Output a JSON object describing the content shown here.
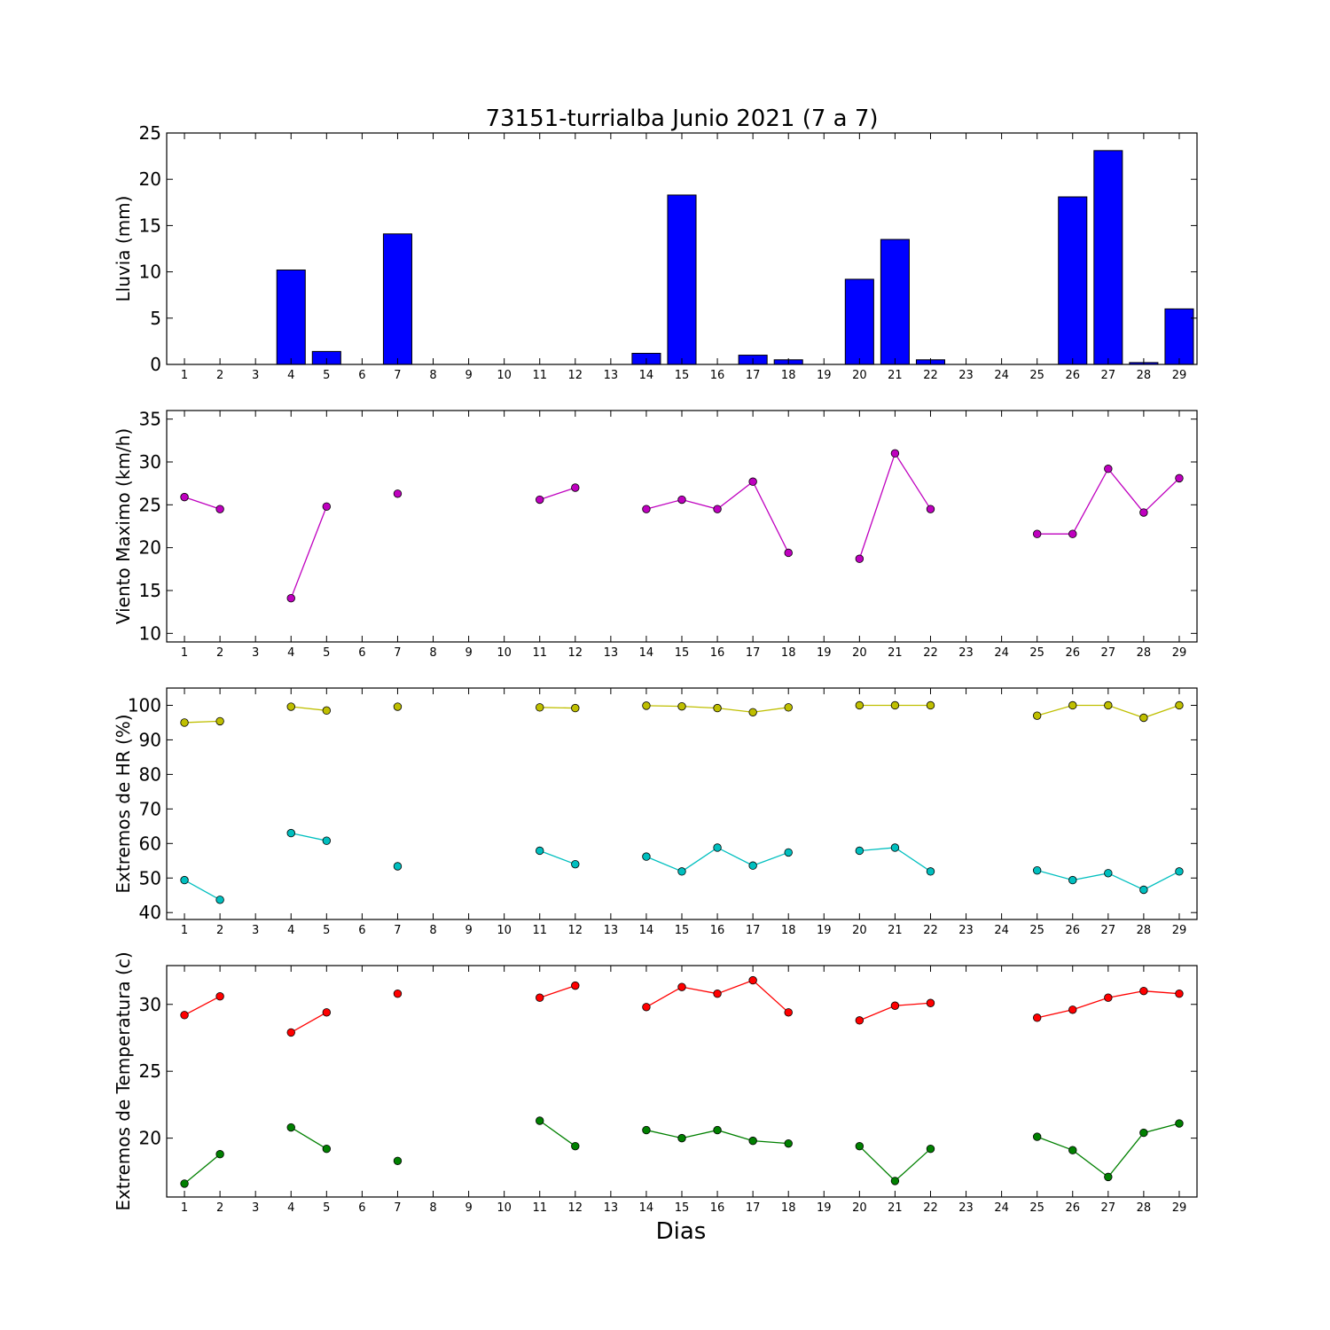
{
  "figure": {
    "title": "73151-turrialba Junio 2021  (7 a 7)",
    "xlabel": "Dias"
  },
  "chart_data": [
    {
      "type": "bar",
      "ylabel": "Lluvia (mm)",
      "x": [
        1,
        2,
        3,
        4,
        5,
        6,
        7,
        8,
        9,
        10,
        11,
        12,
        13,
        14,
        15,
        16,
        17,
        18,
        19,
        20,
        21,
        22,
        23,
        24,
        25,
        26,
        27,
        28,
        29
      ],
      "xticks": [
        1,
        2,
        3,
        4,
        5,
        6,
        7,
        8,
        9,
        10,
        11,
        12,
        13,
        14,
        15,
        16,
        17,
        18,
        19,
        20,
        21,
        22,
        23,
        24,
        25,
        26,
        27,
        28,
        29
      ],
      "xlim": [
        0.5,
        29.5
      ],
      "ylim": [
        0,
        25
      ],
      "yticks": [
        0,
        5,
        10,
        15,
        20,
        25
      ],
      "series": [
        {
          "color": "#0000ff",
          "values": [
            0,
            0,
            0,
            10.2,
            1.4,
            0,
            14.1,
            0,
            0,
            0,
            0,
            0,
            0,
            1.2,
            18.3,
            0,
            1.0,
            0.5,
            0,
            9.2,
            13.5,
            0.5,
            0,
            0,
            0,
            18.1,
            23.1,
            0.2,
            6.0
          ]
        }
      ]
    },
    {
      "type": "line",
      "ylabel": "Viento Maximo (km/h)",
      "x": [
        1,
        2,
        3,
        4,
        5,
        6,
        7,
        8,
        9,
        10,
        11,
        12,
        13,
        14,
        15,
        16,
        17,
        18,
        19,
        20,
        21,
        22,
        23,
        24,
        25,
        26,
        27,
        28,
        29
      ],
      "xticks": [
        1,
        2,
        3,
        4,
        5,
        6,
        7,
        8,
        9,
        10,
        11,
        12,
        13,
        14,
        15,
        16,
        17,
        18,
        19,
        20,
        21,
        22,
        23,
        24,
        25,
        26,
        27,
        28,
        29
      ],
      "xlim": [
        0.5,
        29.5
      ],
      "ylim": [
        9,
        36
      ],
      "yticks": [
        10,
        15,
        20,
        25,
        30,
        35
      ],
      "series": [
        {
          "color": "#bf00bf",
          "values": [
            25.9,
            24.5,
            null,
            14.1,
            24.8,
            null,
            26.3,
            null,
            null,
            null,
            25.6,
            27.0,
            null,
            24.5,
            25.6,
            24.5,
            27.7,
            19.4,
            null,
            18.7,
            31.0,
            24.5,
            null,
            null,
            21.6,
            21.6,
            29.2,
            24.1,
            28.1
          ]
        }
      ]
    },
    {
      "type": "line",
      "ylabel": "Extremos de HR (%)",
      "x": [
        1,
        2,
        3,
        4,
        5,
        6,
        7,
        8,
        9,
        10,
        11,
        12,
        13,
        14,
        15,
        16,
        17,
        18,
        19,
        20,
        21,
        22,
        23,
        24,
        25,
        26,
        27,
        28,
        29
      ],
      "xticks": [
        1,
        2,
        3,
        4,
        5,
        6,
        7,
        8,
        9,
        10,
        11,
        12,
        13,
        14,
        15,
        16,
        17,
        18,
        19,
        20,
        21,
        22,
        23,
        24,
        25,
        26,
        27,
        28,
        29
      ],
      "xlim": [
        0.5,
        29.5
      ],
      "ylim": [
        38,
        105
      ],
      "yticks": [
        40,
        50,
        60,
        70,
        80,
        90,
        100
      ],
      "series": [
        {
          "color": "#bfbf00",
          "values": [
            95.0,
            95.4,
            null,
            99.6,
            98.5,
            null,
            99.6,
            null,
            null,
            null,
            99.4,
            99.2,
            null,
            99.9,
            99.7,
            99.2,
            98.0,
            99.4,
            null,
            100,
            100,
            100,
            null,
            null,
            97.0,
            100,
            100,
            96.4,
            100
          ]
        },
        {
          "color": "#00bfbf",
          "values": [
            49.4,
            43.7,
            null,
            63.0,
            60.8,
            null,
            53.4,
            null,
            null,
            null,
            57.9,
            54.0,
            null,
            56.2,
            51.9,
            58.8,
            53.6,
            57.4,
            null,
            57.9,
            58.8,
            51.9,
            null,
            null,
            52.2,
            49.4,
            51.4,
            46.6,
            51.9
          ]
        }
      ]
    },
    {
      "type": "line",
      "ylabel": "Extremos de Temperatura (c)",
      "x": [
        1,
        2,
        3,
        4,
        5,
        6,
        7,
        8,
        9,
        10,
        11,
        12,
        13,
        14,
        15,
        16,
        17,
        18,
        19,
        20,
        21,
        22,
        23,
        24,
        25,
        26,
        27,
        28,
        29
      ],
      "xticks": [
        1,
        2,
        3,
        4,
        5,
        6,
        7,
        8,
        9,
        10,
        11,
        12,
        13,
        14,
        15,
        16,
        17,
        18,
        19,
        20,
        21,
        22,
        23,
        24,
        25,
        26,
        27,
        28,
        29
      ],
      "xlim": [
        0.5,
        29.5
      ],
      "ylim": [
        15.6,
        32.9
      ],
      "yticks": [
        20,
        25,
        30
      ],
      "series": [
        {
          "color": "#ff0000",
          "values": [
            29.2,
            30.6,
            null,
            27.9,
            29.4,
            null,
            30.8,
            null,
            null,
            null,
            30.5,
            31.4,
            null,
            29.8,
            31.3,
            30.8,
            31.8,
            29.4,
            null,
            28.8,
            29.9,
            30.1,
            null,
            null,
            29.0,
            29.6,
            30.5,
            31.0,
            30.8
          ]
        },
        {
          "color": "#008000",
          "values": [
            16.6,
            18.8,
            null,
            20.8,
            19.2,
            null,
            18.3,
            null,
            null,
            null,
            21.3,
            19.4,
            null,
            20.6,
            20.0,
            20.6,
            19.8,
            19.6,
            null,
            19.4,
            16.8,
            19.2,
            null,
            null,
            20.1,
            19.1,
            17.1,
            20.4,
            21.1
          ]
        }
      ]
    }
  ]
}
